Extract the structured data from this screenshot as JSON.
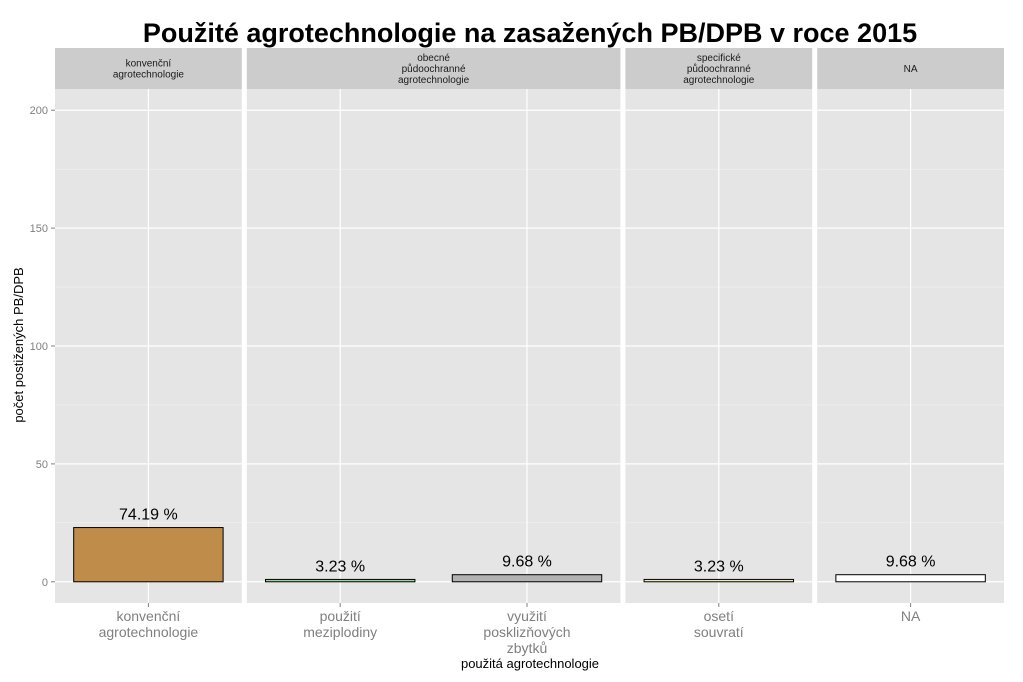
{
  "chart_data": {
    "type": "bar",
    "title": "Použité agrotechnologie na zasažených PB/DPB v roce 2015",
    "xlabel": "použitá agrotechnologie",
    "ylabel": "počet postižených PB/DPB",
    "ylim": [
      -9,
      209
    ],
    "yticks": [
      "0",
      "50",
      "100",
      "150",
      "200"
    ],
    "grid": true,
    "legend": "none",
    "facets": [
      {
        "label": [
          "konvenční",
          "agrotechnologie"
        ],
        "categories": [
          {
            "label": [
              "konvenční",
              "agrotechnologie"
            ],
            "value": 23,
            "percent": "74.19 %",
            "color": "#bf8c4a"
          }
        ]
      },
      {
        "label": [
          "obecné",
          "půdoochranné",
          "agrotechnologie"
        ],
        "categories": [
          {
            "label": [
              "použití",
              "meziplodiny"
            ],
            "value": 1,
            "percent": "3.23 %",
            "color": "#9fd3a3"
          },
          {
            "label": [
              "využití",
              "posklizňových",
              "zbytků"
            ],
            "value": 3,
            "percent": "9.68 %",
            "color": "#b2b2b2"
          }
        ]
      },
      {
        "label": [
          "specifické",
          "půdoochranné",
          "agrotechnologie"
        ],
        "categories": [
          {
            "label": [
              "osetí",
              "souvratí"
            ],
            "value": 1,
            "percent": "3.23 %",
            "color": "#f2e9c4"
          }
        ]
      },
      {
        "label": [
          "NA"
        ],
        "categories": [
          {
            "label": [
              "NA"
            ],
            "value": 3,
            "percent": "9.68 %",
            "color": "#ffffff"
          }
        ]
      }
    ]
  }
}
